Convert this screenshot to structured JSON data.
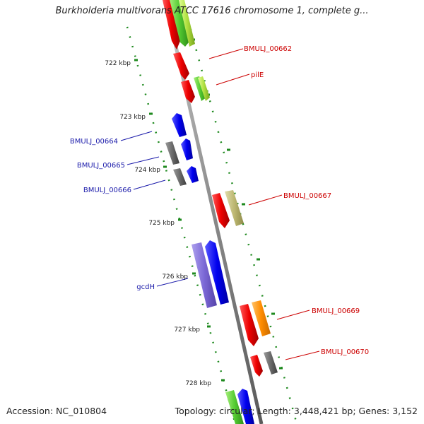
{
  "title": "Burkholderia multivorans ATCC 17616 chromosome 1, complete g...",
  "footer": {
    "accession_label": "Accession: NC_010804",
    "summary": "Topology: circular; Length: 3,448,421 bp; Genes: 3,152"
  },
  "ticks": [
    {
      "label": "722 kbp"
    },
    {
      "label": "723 kbp"
    },
    {
      "label": "724 kbp"
    },
    {
      "label": "725 kbp"
    },
    {
      "label": "726 kbp"
    },
    {
      "label": "727 kbp"
    },
    {
      "label": "728 kbp"
    }
  ],
  "gene_labels": [
    {
      "text": "BMULJ_00662",
      "color": "#cc0000"
    },
    {
      "text": "pilE",
      "color": "#cc0000"
    },
    {
      "text": "BMULJ_00664",
      "color": "#1a1aaa"
    },
    {
      "text": "BMULJ_00665",
      "color": "#1a1aaa"
    },
    {
      "text": "BMULJ_00666",
      "color": "#1a1aaa"
    },
    {
      "text": "BMULJ_00667",
      "color": "#cc0000"
    },
    {
      "text": "gcdH",
      "color": "#1a1aaa"
    },
    {
      "text": "BMULJ_00669",
      "color": "#cc0000"
    },
    {
      "text": "BMULJ_00670",
      "color": "#cc0000"
    }
  ],
  "colors": {
    "backbone": "#8a8a8a",
    "tick": "#1f8a1f",
    "forward_cds": "#ee0000",
    "reverse_cds": "#0000ee",
    "gene_other": "#6a6a6a",
    "feature_green": "#66cc33",
    "feature_lime": "#aadd44",
    "feature_khaki": "#bdb872",
    "feature_orange": "#ff8c00",
    "feature_purple": "#7b68d6"
  }
}
